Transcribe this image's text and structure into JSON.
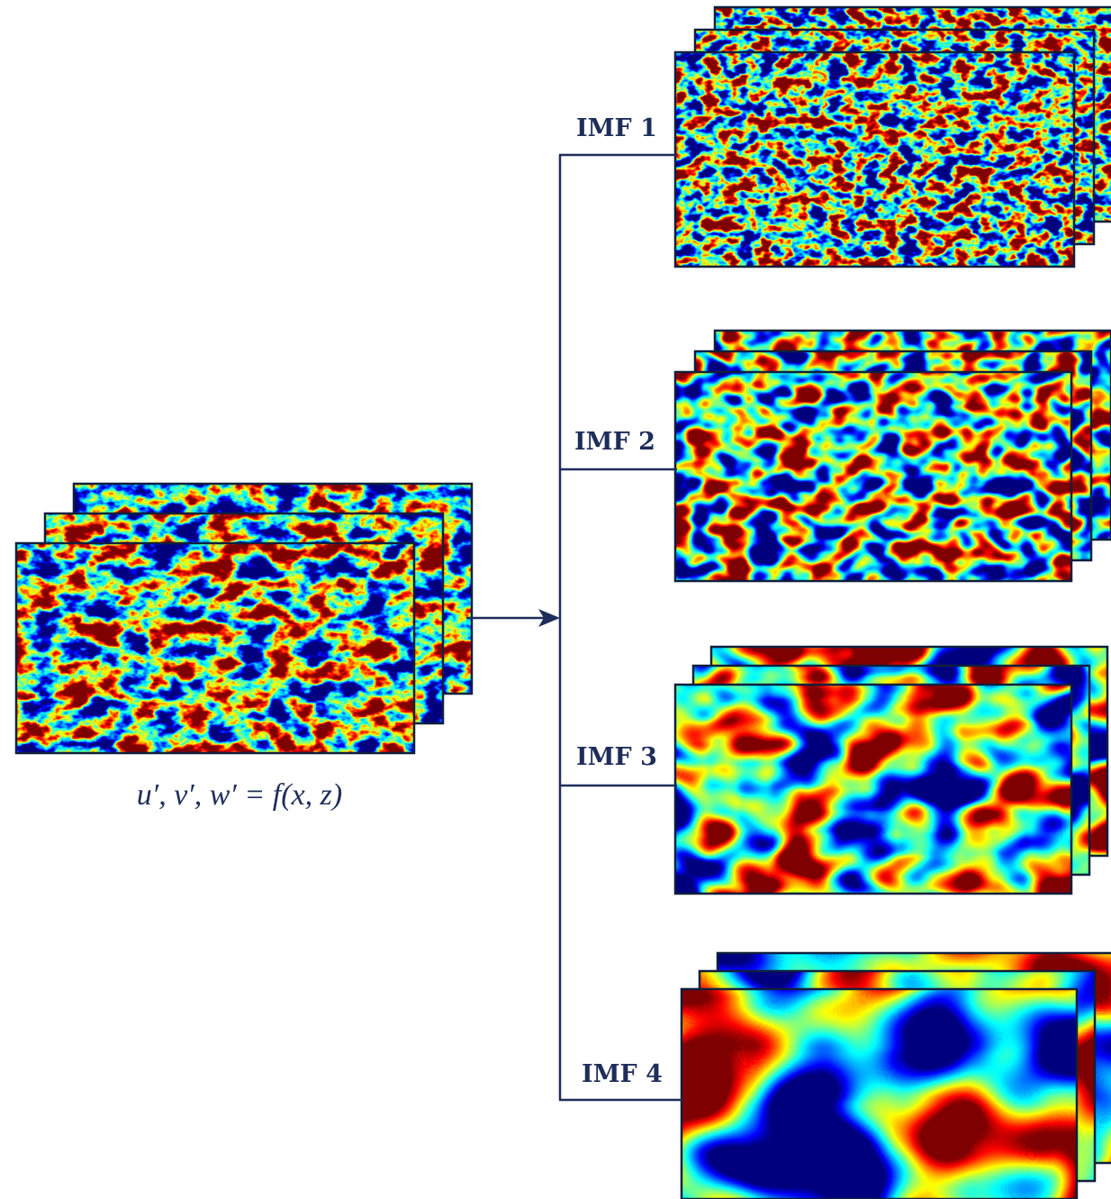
{
  "input": {
    "label": "u′, v′, w′ = f(x, z)"
  },
  "branches": [
    {
      "label": "IMF 1"
    },
    {
      "label": "IMF 2"
    },
    {
      "label": "IMF 3"
    },
    {
      "label": "IMF 4"
    }
  ]
}
